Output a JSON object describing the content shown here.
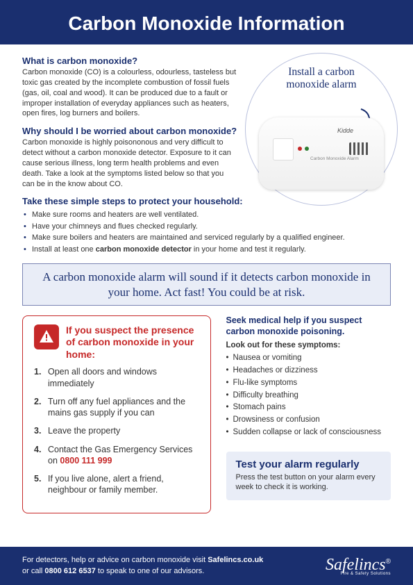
{
  "colors": {
    "brand_navy": "#1a2f6f",
    "accent_red": "#c62828",
    "panel_lilac": "#e9edf7",
    "panel_border": "#7a84b3",
    "text": "#333333",
    "white": "#ffffff"
  },
  "header": {
    "title": "Carbon Monoxide Information"
  },
  "hero": {
    "label": "Install a carbon monoxide alarm",
    "device_brand": "Kidde",
    "device_label": "Carbon Monoxide\nAlarm"
  },
  "sections": {
    "what": {
      "heading": "What is carbon monoxide?",
      "body": "Carbon monoxide (CO) is a colourless, odourless, tasteless but toxic gas created by the incomplete combustion of fossil fuels (gas, oil, coal and wood). It can be produced due to a fault or improper installation of everyday appliances such as heaters, open fires, log burners and boilers."
    },
    "why": {
      "heading": "Why should I be worried about carbon monoxide?",
      "body": "Carbon monoxide is highly poisononous and very difficult to detect without a carbon monoxide detector. Exposure to it can cause serious illness, long term health problems and even death. Take a look at the symptoms listed below so that you can be in the know about CO."
    },
    "steps": {
      "heading": "Take these simple steps to protect your household:",
      "items": [
        "Make sure rooms and heaters are well ventilated.",
        "Have your chimneys and flues checked regularly.",
        "Make sure boilers and heaters are maintained and serviced regularly by a qualified engineer.",
        "Install at least one carbon monoxide detector in your home and test it regularly."
      ],
      "bold_phrase": "carbon monoxide detector"
    }
  },
  "banner": "A carbon monoxide alarm will sound if it detects carbon monoxide in your home. Act fast! You could be at risk.",
  "suspect": {
    "title": "If you suspect the presence of carbon monoxide in your home:",
    "items": [
      "Open all doors and windows immediately",
      "Turn off any fuel appliances and the mains gas supply if you can",
      "Leave the property",
      "Contact the Gas Emergency Services on 0800 111 999",
      "If you live alone, alert a friend, neighbour or family member."
    ],
    "emergency_number": "0800 111 999"
  },
  "symptoms": {
    "heading": "Seek medical help if you suspect carbon monoxide poisoning.",
    "sub": "Look out for these symptoms:",
    "items": [
      "Nausea or vomiting",
      "Headaches or dizziness",
      "Flu-like symptoms",
      "Difficulty breathing",
      "Stomach pains",
      "Drowsiness or confusion",
      "Sudden collapse or lack of consciousness"
    ]
  },
  "test_box": {
    "title": "Test your alarm regularly",
    "body": "Press the test button on your alarm every week to check it is working."
  },
  "footer": {
    "line1_pre": "For detectors, help or advice on carbon monoxide visit ",
    "line1_bold": "Safelincs.co.uk",
    "line2_pre": "or call ",
    "line2_bold": "0800 612 6537",
    "line2_post": " to speak to one of our advisors.",
    "logo": "Safelincs",
    "logo_tag": "Fire & Safety Solutions"
  }
}
